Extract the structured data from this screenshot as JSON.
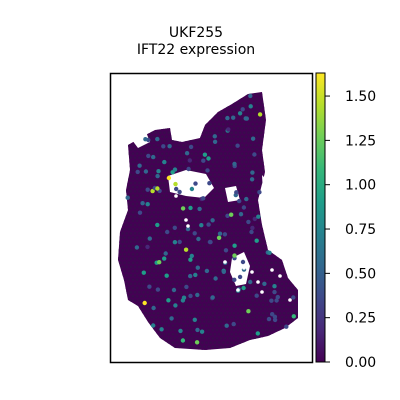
{
  "chart_data": {
    "type": "scatter",
    "title": "UKF255",
    "subtitle": "IFT22 expression",
    "xlabel": "",
    "ylabel": "",
    "legend": "none",
    "grid": false,
    "colorbar": {
      "label": "",
      "min": 0.0,
      "max": 1.63,
      "ticks": [
        0.0,
        0.25,
        0.5,
        0.75,
        1.0,
        1.25,
        1.5
      ],
      "tick_labels": [
        "0.00",
        "0.25",
        "0.50",
        "0.75",
        "1.00",
        "1.25",
        "1.50"
      ],
      "colormap": "viridis"
    },
    "spot_expression_summary": {
      "background_value": 0.0,
      "highlighted_values": [
        1.6,
        1.45,
        1.3,
        1.2,
        1.05,
        0.9,
        0.8,
        0.7,
        0.6,
        0.5,
        0.4
      ]
    }
  },
  "colors": {
    "axes": "#000000",
    "background": "#ffffff",
    "viridis": [
      "#440154",
      "#482878",
      "#3e4989",
      "#31688e",
      "#26828e",
      "#1f9e89",
      "#35b779",
      "#6ece58",
      "#b5de2b",
      "#fde725"
    ]
  }
}
